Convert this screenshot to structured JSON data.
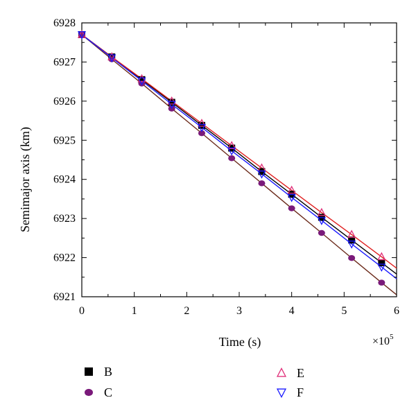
{
  "chart_data": {
    "type": "line",
    "xlabel": "Time (s)",
    "ylabel": "Semimajor axis (km)",
    "x_multiplier_label": "×10",
    "x_multiplier_exponent": "5",
    "xlim": [
      0,
      6
    ],
    "ylim": [
      6921,
      6928
    ],
    "x_ticks": [
      "0",
      "1",
      "2",
      "3",
      "4",
      "5",
      "6"
    ],
    "y_ticks": [
      "6921",
      "6922",
      "6923",
      "6924",
      "6925",
      "6926",
      "6927",
      "6928"
    ],
    "series": [
      {
        "name": "B",
        "marker": "square",
        "color": "#000000",
        "line_color": "#000000",
        "x": [
          0,
          0.571,
          1.143,
          1.714,
          2.286,
          2.857,
          3.429,
          4.0,
          4.571,
          5.143,
          5.714
        ],
        "y": [
          6927.7,
          6927.13,
          6926.55,
          6925.97,
          6925.38,
          6924.8,
          6924.2,
          6923.62,
          6923.03,
          6922.45,
          6921.87
        ],
        "line_end": [
          6,
          6921.58
        ]
      },
      {
        "name": "C",
        "marker": "circle",
        "color": "#7a1a7a",
        "line_color": "#6b2a1a",
        "x": [
          0,
          0.571,
          1.143,
          1.714,
          2.286,
          2.857,
          3.429,
          4.0,
          4.571,
          5.143,
          5.714
        ],
        "y": [
          6927.7,
          6927.07,
          6926.45,
          6925.81,
          6925.18,
          6924.54,
          6923.9,
          6923.26,
          6922.63,
          6921.99,
          6921.36
        ],
        "line_end": [
          6,
          6921.05
        ]
      },
      {
        "name": "E",
        "marker": "triangle-up",
        "color": "#e0307a",
        "line_color": "#e02020",
        "x": [
          0,
          0.571,
          1.143,
          1.714,
          2.286,
          2.857,
          3.429,
          4.0,
          4.571,
          5.143,
          5.714
        ],
        "y": [
          6927.7,
          6927.13,
          6926.57,
          6926.0,
          6925.43,
          6924.86,
          6924.29,
          6923.72,
          6923.15,
          6922.59,
          6922.02
        ],
        "line_end": [
          6,
          6921.73
        ]
      },
      {
        "name": "F",
        "marker": "triangle-down",
        "color": "#1a1aff",
        "line_color": "#1a1aff",
        "x": [
          0,
          0.571,
          1.143,
          1.714,
          2.286,
          2.857,
          3.429,
          4.0,
          4.571,
          5.143,
          5.714
        ],
        "y": [
          6927.7,
          6927.11,
          6926.52,
          6925.92,
          6925.33,
          6924.73,
          6924.14,
          6923.54,
          6922.95,
          6922.35,
          6921.76
        ],
        "line_end": [
          6,
          6921.46
        ]
      }
    ],
    "legend": [
      {
        "series": "B"
      },
      {
        "series": "C"
      },
      {
        "series": "E"
      },
      {
        "series": "F"
      }
    ]
  }
}
